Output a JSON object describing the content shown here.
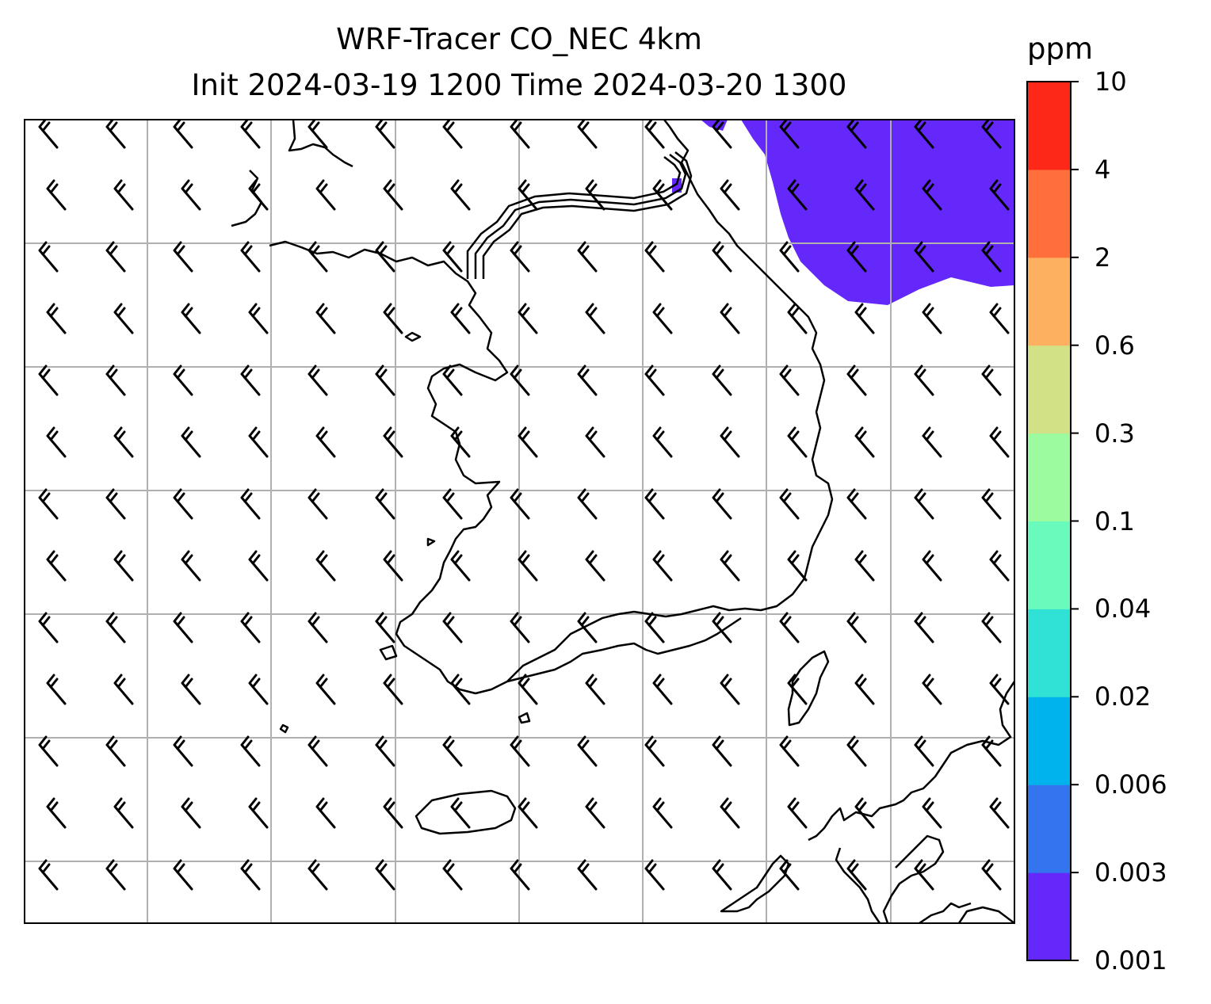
{
  "title": {
    "line1": "WRF-Tracer CO_NEC 4km",
    "line2": "Init 2024-03-19 1200 Time 2024-03-20 1300"
  },
  "colorbar": {
    "unit": "ppm",
    "levels": [
      "0.001",
      "0.003",
      "0.006",
      "0.02",
      "0.04",
      "0.1",
      "0.3",
      "0.6",
      "2",
      "4",
      "10"
    ],
    "colors": [
      "#6428fa",
      "#3574ef",
      "#00b3ec",
      "#30e1d6",
      "#69fbbb",
      "#9cfb9f",
      "#d2e185",
      "#feb061",
      "#fe6f3c",
      "#fe2818"
    ]
  },
  "map": {
    "gridlines": true,
    "wind_barbs": "from northwest",
    "tracer_region": "northeast corner, lowest level (0.001–0.003 ppm)"
  }
}
